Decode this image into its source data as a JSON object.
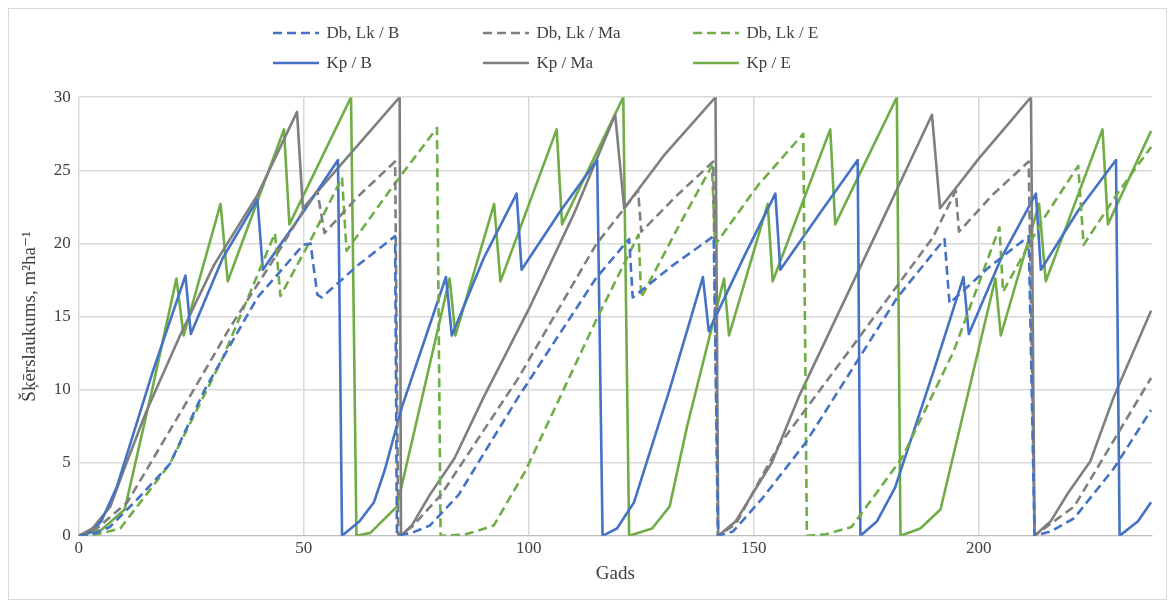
{
  "chart_data": {
    "type": "line",
    "xlabel": "Gads",
    "ylabel": "Šķērslaukums, m²ha⁻¹",
    "xlim": [
      0,
      238.5
    ],
    "xticks": [
      0,
      50,
      100,
      150,
      200
    ],
    "ylim": [
      0,
      30
    ],
    "yticks": [
      0,
      5,
      10,
      15,
      20,
      25,
      30
    ],
    "grid": true,
    "legend": "top",
    "marker": "none",
    "series": [
      {
        "name": "Db, Lk / B",
        "color": "#4472c4",
        "line_style": "dashed",
        "x": [
          0,
          3,
          6.9,
          13,
          20.2,
          28,
          39.7,
          49.9,
          51.5,
          53,
          54,
          62,
          70.3,
          70.7,
          74,
          78,
          84.4,
          97.7,
          114.9,
          122.3,
          123.1,
          132,
          141.1,
          142.1,
          145.4,
          152,
          161.6,
          173.3,
          181.9,
          192.4,
          193.5,
          202,
          211.1,
          212.4,
          216,
          221.2,
          230,
          238.3
        ],
        "values": [
          0,
          0.1,
          0.6,
          2.5,
          4.9,
          10,
          16.3,
          19.9,
          20,
          16.5,
          16.3,
          18.5,
          20.5,
          0,
          0.2,
          0.7,
          2.8,
          9.5,
          17.6,
          20.3,
          16.3,
          18.5,
          20.5,
          0,
          0.3,
          2.6,
          6.4,
          12.1,
          16.3,
          20.3,
          15.9,
          18.3,
          20.5,
          0,
          0.3,
          1.2,
          4.6,
          8.6
        ]
      },
      {
        "name": "Db, Lk / Ma",
        "color": "#7f7f7f",
        "line_style": "dashed",
        "x": [
          0,
          4,
          10.8,
          23.3,
          33.5,
          43.7,
          50,
          53,
          54.6,
          62,
          70.3,
          71,
          74,
          80.5,
          97.7,
          114.9,
          124.3,
          125,
          133,
          141,
          142,
          146,
          155.6,
          171.8,
          189.8,
          194.9,
          195.6,
          203,
          211.1,
          212.4,
          215,
          221.2,
          238.3
        ],
        "values": [
          0,
          0.5,
          2.3,
          8.8,
          14.2,
          19.1,
          22.3,
          23.6,
          20.7,
          23.2,
          25.6,
          0,
          0.6,
          2.8,
          10.8,
          19.9,
          23.6,
          20.8,
          23.3,
          25.6,
          0,
          0.8,
          6.2,
          12.9,
          20.4,
          23.6,
          20.8,
          23.3,
          25.6,
          0,
          0.6,
          2,
          10.8
        ]
      },
      {
        "name": "Db, Lk / E",
        "color": "#70ad47",
        "line_style": "dashed",
        "x": [
          0,
          4,
          9.2,
          20.2,
          31.9,
          43.6,
          44.8,
          52,
          58.5,
          59.5,
          70,
          79.6,
          80.4,
          86,
          92.2,
          99.2,
          114.9,
          124.4,
          125,
          133,
          140.7,
          141.4,
          151,
          161,
          161.8,
          166,
          171.7,
          182.9,
          194.4,
          204.6,
          205.4,
          214,
          222.1,
          223.3,
          231,
          238.3
        ],
        "values": [
          0,
          0.1,
          0.5,
          4.9,
          12.1,
          20.7,
          16.4,
          20.5,
          24.5,
          19.5,
          24,
          27.9,
          0,
          0.1,
          0.7,
          4.4,
          14.7,
          20.6,
          16.3,
          21,
          25.3,
          19.9,
          24,
          27.5,
          0,
          0.1,
          0.6,
          5.3,
          12.6,
          21.1,
          16.7,
          21.5,
          25.3,
          19.9,
          23.5,
          26.6
        ]
      },
      {
        "name": "Kp / B",
        "color": "#4472c4",
        "line_style": "solid",
        "x": [
          0,
          3,
          5,
          8.4,
          16.3,
          23.7,
          24.9,
          32,
          39.7,
          40.9,
          50,
          57.6,
          58.5,
          62.4,
          65.6,
          68,
          71.8,
          81.6,
          82.9,
          90,
          97.3,
          98.4,
          107,
          115.2,
          116.4,
          119.6,
          123.4,
          131.3,
          138.7,
          140,
          148,
          154.8,
          155.9,
          165,
          173.1,
          173.7,
          177.4,
          181.4,
          190,
          196.6,
          197.8,
          205,
          212.7,
          213.8,
          222,
          230.5,
          231.3,
          235.4,
          238.3
        ],
        "values": [
          0,
          0.3,
          1,
          3.3,
          11.1,
          17.8,
          13.8,
          19,
          23,
          18.2,
          22.2,
          25.7,
          0,
          1,
          2.3,
          4.5,
          8.8,
          17.7,
          13.7,
          19,
          23.4,
          18.2,
          22.2,
          25.7,
          0,
          0.5,
          2.3,
          10,
          17.7,
          14,
          19.2,
          23.4,
          18.2,
          22.2,
          25.7,
          0,
          1,
          3.3,
          11.3,
          17.7,
          13.8,
          19,
          23.4,
          18.2,
          22.2,
          25.7,
          0,
          1,
          2.3
        ]
      },
      {
        "name": "Kp / Ma",
        "color": "#7f7f7f",
        "line_style": "solid",
        "x": [
          0,
          3,
          7,
          10,
          15,
          22.5,
          30,
          39.7,
          48.5,
          49.8,
          60,
          71.3,
          71.6,
          74,
          78,
          83.5,
          90,
          100,
          110,
          119.2,
          121.2,
          130,
          141.5,
          142.1,
          146,
          150,
          154,
          160,
          170,
          180,
          189.6,
          191.4,
          200,
          211.6,
          212.4,
          216,
          220,
          224.8,
          230,
          238.3
        ],
        "values": [
          0,
          0.5,
          2,
          4.5,
          8.5,
          13.7,
          18.5,
          23.3,
          29,
          22.4,
          26,
          30,
          0,
          0.7,
          2.8,
          5.3,
          9.5,
          15.5,
          22,
          28.8,
          22.4,
          26,
          30,
          0,
          1,
          3,
          5,
          9.5,
          16,
          22.5,
          28.8,
          22.4,
          25.8,
          30,
          0,
          1,
          3,
          5.1,
          9.5,
          15.4
        ]
      },
      {
        "name": "Kp / E",
        "color": "#70ad47",
        "line_style": "solid",
        "x": [
          0,
          5,
          10.2,
          16.3,
          21.7,
          23.3,
          31.5,
          33.1,
          45.6,
          46.8,
          60.5,
          61.7,
          64.8,
          70.7,
          82.4,
          83.7,
          92.3,
          93.7,
          106.2,
          107.4,
          121,
          122.3,
          127.4,
          131.3,
          135.2,
          143.4,
          144.5,
          153.1,
          154.2,
          167,
          168.1,
          181.8,
          182.6,
          187,
          191.5,
          203.7,
          204.9,
          213.4,
          214.9,
          227.5,
          228.7,
          238.3
        ],
        "values": [
          0,
          0.4,
          1.8,
          10,
          17.6,
          13.7,
          22.7,
          17.4,
          27.8,
          21.3,
          30,
          0,
          0.2,
          2,
          17.6,
          13.7,
          22.7,
          17.4,
          27.8,
          21.3,
          30,
          0,
          0.5,
          2,
          7.5,
          17.6,
          13.7,
          22.7,
          17.4,
          27.8,
          21.3,
          30,
          0,
          0.5,
          1.8,
          17.6,
          13.7,
          22.7,
          17.4,
          27.8,
          21.3,
          27.7
        ]
      }
    ]
  }
}
